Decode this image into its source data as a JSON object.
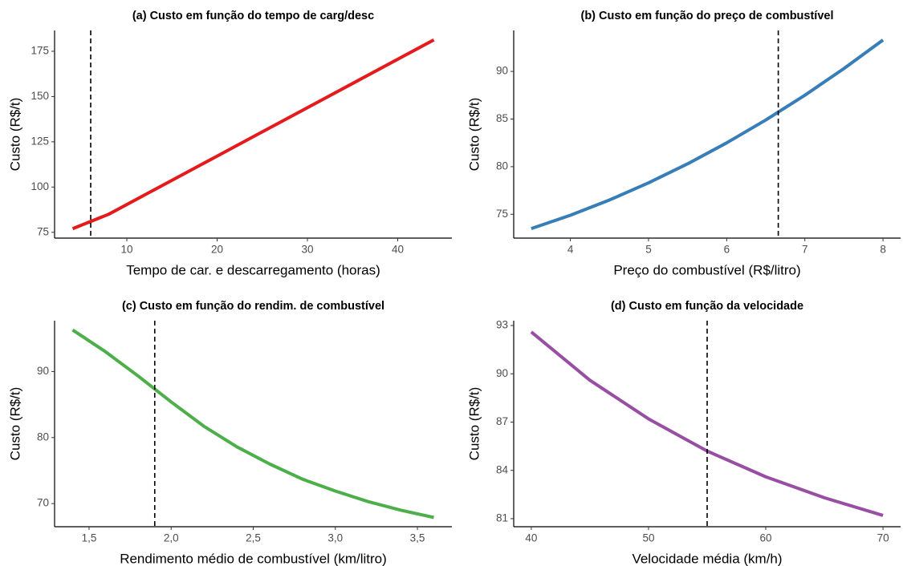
{
  "chart_data": [
    {
      "type": "line",
      "title": "(a) Custo em função do tempo de carg/desc",
      "x_label": "Tempo de car. e descarregamento (horas)",
      "y_label": "Custo (R$/t)",
      "x": [
        4,
        8,
        12,
        16,
        20,
        24,
        28,
        32,
        36,
        40,
        44
      ],
      "series": [
        {
          "color": "#e41a1c",
          "values": [
            77,
            85,
            95.7,
            106.4,
            117.1,
            127.8,
            138.5,
            149.2,
            159.9,
            170.6,
            181.3
          ]
        }
      ],
      "reference_x": 6,
      "xlim": [
        2,
        46
      ],
      "xticks": [
        10,
        20,
        30,
        40
      ],
      "ylim": [
        71.8,
        186.5
      ],
      "yticks": [
        75,
        100,
        125,
        150,
        175
      ]
    },
    {
      "type": "line",
      "title": "(b) Custo em função do preço de combustível",
      "x_label": "Preço do combustível (R$/litro)",
      "y_label": "Custo (R$/t)",
      "x": [
        3.5,
        4,
        4.5,
        5,
        5.5,
        6,
        6.5,
        7,
        7.5,
        8
      ],
      "series": [
        {
          "color": "#377eb8",
          "values": [
            73.5,
            74.9,
            76.5,
            78.3,
            80.3,
            82.5,
            84.9,
            87.5,
            90.3,
            93.3
          ]
        }
      ],
      "reference_x": 6.66,
      "xlim": [
        3.275,
        8.225
      ],
      "xticks": [
        4,
        5,
        6,
        7,
        8
      ],
      "ylim": [
        72.5,
        94.3
      ],
      "yticks": [
        75,
        80,
        85,
        90
      ]
    },
    {
      "type": "line",
      "title": "(c) Custo em função do rendim. de combustível",
      "x_label": "Rendimento médio de combustível (km/litro)",
      "y_label": "Custo (R$/t)",
      "x": [
        1.4,
        1.6,
        1.8,
        2.0,
        2.2,
        2.4,
        2.6,
        2.8,
        3.0,
        3.2,
        3.4,
        3.6
      ],
      "series": [
        {
          "color": "#4daf4a",
          "values": [
            96.3,
            93.0,
            89.3,
            85.4,
            81.7,
            78.6,
            76.0,
            73.7,
            71.9,
            70.3,
            69.0,
            67.9
          ]
        }
      ],
      "reference_x": 1.9,
      "xlim": [
        1.29,
        3.71
      ],
      "xticks": [
        {
          "value": 1.5,
          "label": "1,5"
        },
        {
          "value": 2.0,
          "label": "2,0"
        },
        {
          "value": 2.5,
          "label": "2,5"
        },
        {
          "value": 3.0,
          "label": "3,0"
        },
        {
          "value": 3.5,
          "label": "3,5"
        }
      ],
      "ylim": [
        66.5,
        97.7
      ],
      "yticks": [
        70,
        80,
        90
      ]
    },
    {
      "type": "line",
      "title": "(d) Custo em função da velocidade",
      "x_label": "Velocidade média (km/h)",
      "y_label": "Custo (R$/t)",
      "x": [
        40,
        45,
        50,
        55,
        60,
        65,
        70
      ],
      "series": [
        {
          "color": "#984ea3",
          "values": [
            92.6,
            89.6,
            87.2,
            85.2,
            83.6,
            82.3,
            81.2
          ]
        }
      ],
      "reference_x": 55,
      "xlim": [
        38.5,
        71.5
      ],
      "xticks": [
        40,
        50,
        60,
        70
      ],
      "ylim": [
        80.5,
        93.3
      ],
      "yticks": [
        81,
        84,
        87,
        90,
        93
      ]
    }
  ]
}
